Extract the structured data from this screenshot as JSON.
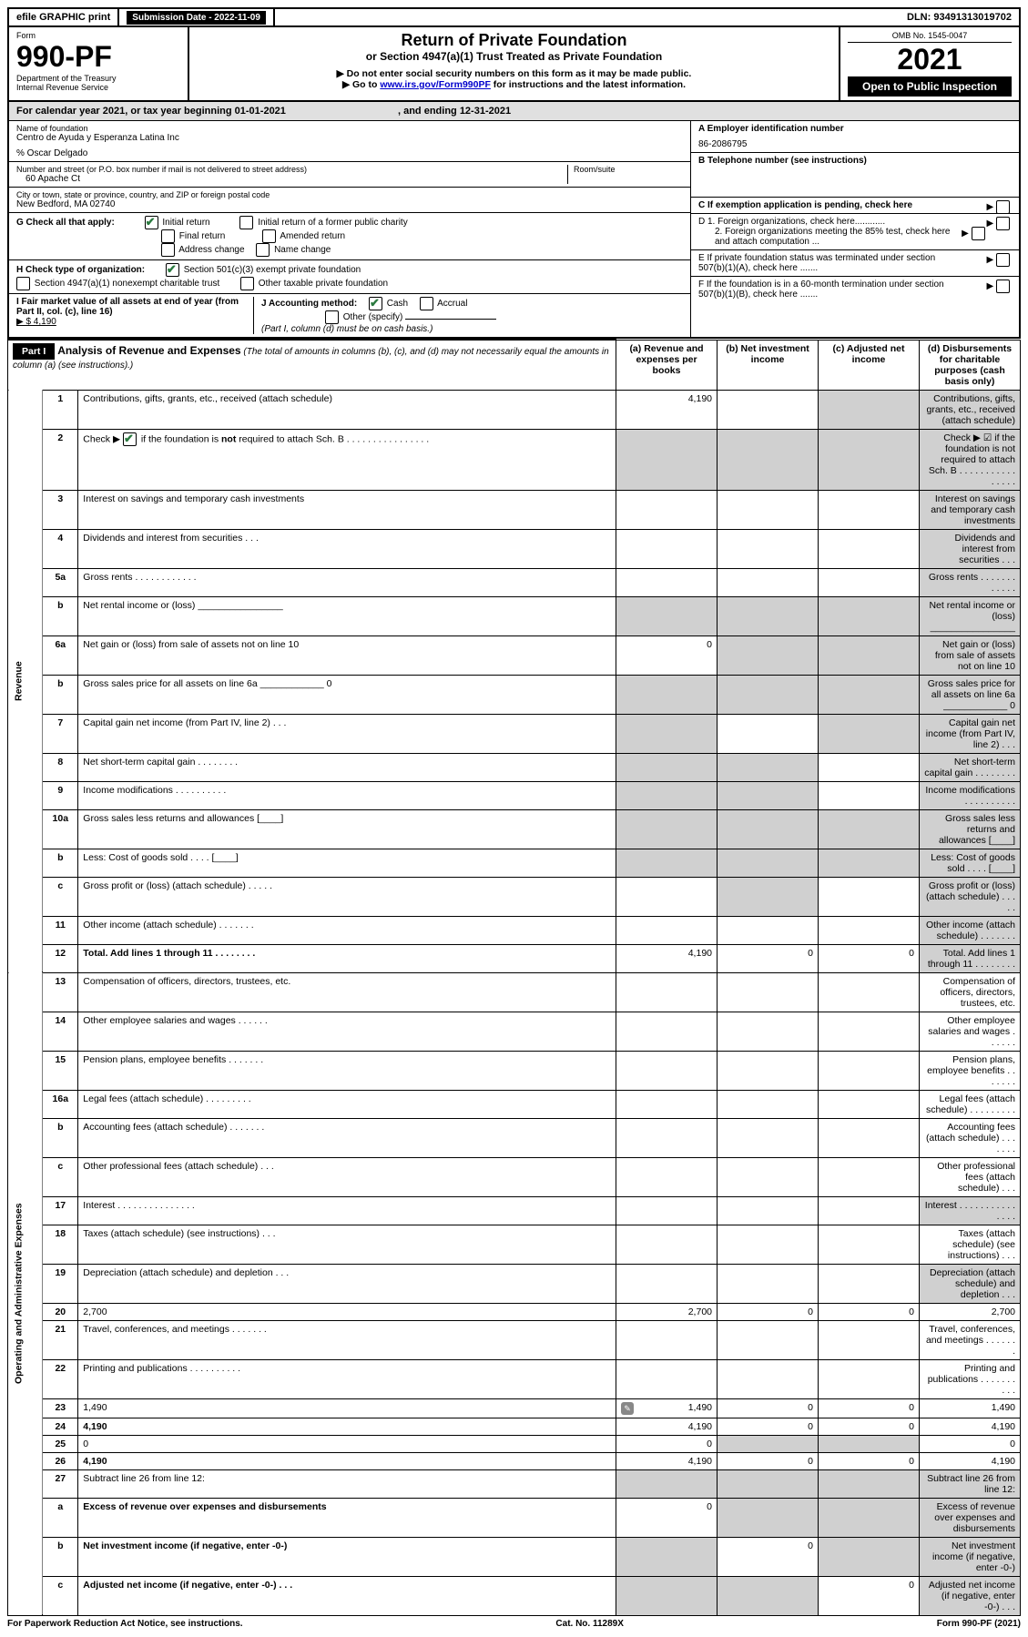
{
  "top": {
    "efile": "efile GRAPHIC print",
    "submission": "Submission Date - 2022-11-09",
    "dln": "DLN: 93491313019702"
  },
  "header": {
    "form_word": "Form",
    "form_num": "990-PF",
    "dept": "Department of the Treasury",
    "irs": "Internal Revenue Service",
    "title": "Return of Private Foundation",
    "subtitle": "or Section 4947(a)(1) Trust Treated as Private Foundation",
    "note1": "▶ Do not enter social security numbers on this form as it may be made public.",
    "note2_pre": "▶ Go to ",
    "note2_link": "www.irs.gov/Form990PF",
    "note2_post": " for instructions and the latest information.",
    "omb": "OMB No. 1545-0047",
    "year": "2021",
    "open": "Open to Public Inspection"
  },
  "calendar": {
    "text": "For calendar year 2021, or tax year beginning 01-01-2021",
    "ending": ", and ending 12-31-2021"
  },
  "entity": {
    "name_label": "Name of foundation",
    "name": "Centro de Ayuda y Esperanza Latina Inc",
    "care_of": "% Oscar Delgado",
    "addr_label": "Number and street (or P.O. box number if mail is not delivered to street address)",
    "addr": "60 Apache Ct",
    "room_label": "Room/suite",
    "city_label": "City or town, state or province, country, and ZIP or foreign postal code",
    "city": "New Bedford, MA  02740",
    "ein_label": "A Employer identification number",
    "ein": "86-2086795",
    "phone_label": "B Telephone number (see instructions)",
    "c_label": "C If exemption application is pending, check here",
    "d1": "D 1. Foreign organizations, check here............",
    "d2": "2. Foreign organizations meeting the 85% test, check here and attach computation ...",
    "e_label": "E  If private foundation status was terminated under section 507(b)(1)(A), check here .......",
    "f_label": "F  If the foundation is in a 60-month termination under section 507(b)(1)(B), check here .......",
    "g_label": "G Check all that apply:",
    "g_opts": [
      "Initial return",
      "Initial return of a former public charity",
      "Final return",
      "Amended return",
      "Address change",
      "Name change"
    ],
    "h_label": "H Check type of organization:",
    "h_opts": [
      "Section 501(c)(3) exempt private foundation",
      "Section 4947(a)(1) nonexempt charitable trust",
      "Other taxable private foundation"
    ],
    "i_label": "I Fair market value of all assets at end of year (from Part II, col. (c), line 16)",
    "i_val": "▶ $  4,190",
    "j_label": "J Accounting method:",
    "j_cash": "Cash",
    "j_accrual": "Accrual",
    "j_other": "Other (specify)",
    "j_note": "(Part I, column (d) must be on cash basis.)"
  },
  "part1": {
    "label": "Part I",
    "title": "Analysis of Revenue and Expenses",
    "title_note": " (The total of amounts in columns (b), (c), and (d) may not necessarily equal the amounts in column (a) (see instructions).)",
    "cols": {
      "a": "(a) Revenue and expenses per books",
      "b": "(b) Net investment income",
      "c": "(c) Adjusted net income",
      "d": "(d) Disbursements for charitable purposes (cash basis only)"
    }
  },
  "sidelabels": {
    "revenue": "Revenue",
    "expenses": "Operating and Administrative Expenses"
  },
  "lines": [
    {
      "n": "1",
      "d": "Contributions, gifts, grants, etc., received (attach schedule)",
      "a": "4,190",
      "shade_b": false,
      "shade_c": true,
      "shade_d": true
    },
    {
      "n": "2",
      "d": "Check ▶ ☑ if the foundation is not required to attach Sch. B    .  .  .  .  .  .  .  .  .  .  .  .  .  .  .  .",
      "shade_a": true,
      "shade_b": true,
      "shade_c": true,
      "shade_d": true,
      "bold_not": true
    },
    {
      "n": "3",
      "d": "Interest on savings and temporary cash investments",
      "shade_d": true
    },
    {
      "n": "4",
      "d": "Dividends and interest from securities    .   .   .",
      "shade_d": true
    },
    {
      "n": "5a",
      "d": "Gross rents    .   .   .   .   .   .   .   .   .   .   .   .",
      "shade_d": true
    },
    {
      "n": "b",
      "d": "Net rental income or (loss) ________________",
      "shade_a": true,
      "shade_b": true,
      "shade_c": true,
      "shade_d": true
    },
    {
      "n": "6a",
      "d": "Net gain or (loss) from sale of assets not on line 10",
      "a": "0",
      "shade_b": true,
      "shade_c": true,
      "shade_d": true
    },
    {
      "n": "b",
      "d": "Gross sales price for all assets on line 6a ____________ 0",
      "shade_a": true,
      "shade_b": true,
      "shade_c": true,
      "shade_d": true
    },
    {
      "n": "7",
      "d": "Capital gain net income (from Part IV, line 2)   .   .   .",
      "shade_a": true,
      "shade_c": true,
      "shade_d": true
    },
    {
      "n": "8",
      "d": "Net short-term capital gain   .   .   .   .   .   .   .   .",
      "shade_a": true,
      "shade_b": true,
      "shade_d": true
    },
    {
      "n": "9",
      "d": "Income modifications   .   .   .   .   .   .   .   .   .   .",
      "shade_a": true,
      "shade_b": true,
      "shade_d": true
    },
    {
      "n": "10a",
      "d": "Gross sales less returns and allowances   [____]",
      "shade_a": true,
      "shade_b": true,
      "shade_c": true,
      "shade_d": true
    },
    {
      "n": "b",
      "d": "Less: Cost of goods sold   .   .   .   .   [____]",
      "shade_a": true,
      "shade_b": true,
      "shade_c": true,
      "shade_d": true
    },
    {
      "n": "c",
      "d": "Gross profit or (loss) (attach schedule)   .   .   .   .   .",
      "shade_b": true,
      "shade_d": true
    },
    {
      "n": "11",
      "d": "Other income (attach schedule)   .   .   .   .   .   .   .",
      "shade_d": true
    },
    {
      "n": "12",
      "d": "Total. Add lines 1 through 11   .   .   .   .   .   .   .   .",
      "a": "4,190",
      "b": "0",
      "c": "0",
      "shade_d": true,
      "bold": true
    },
    {
      "n": "13",
      "d": "Compensation of officers, directors, trustees, etc."
    },
    {
      "n": "14",
      "d": "Other employee salaries and wages   .   .   .   .   .   ."
    },
    {
      "n": "15",
      "d": "Pension plans, employee benefits   .   .   .   .   .   .   ."
    },
    {
      "n": "16a",
      "d": "Legal fees (attach schedule)  .   .   .   .   .   .   .   .   ."
    },
    {
      "n": "b",
      "d": "Accounting fees (attach schedule)  .   .   .   .   .   .   ."
    },
    {
      "n": "c",
      "d": "Other professional fees (attach schedule)   .   .   ."
    },
    {
      "n": "17",
      "d": "Interest   .   .   .   .   .   .   .   .   .   .   .   .   .   .   .",
      "shade_d": true
    },
    {
      "n": "18",
      "d": "Taxes (attach schedule) (see instructions)   .   .   ."
    },
    {
      "n": "19",
      "d": "Depreciation (attach schedule) and depletion   .   .   .",
      "shade_d": true
    },
    {
      "n": "20",
      "d": "2,700",
      "a": "2,700",
      "b": "0",
      "c": "0"
    },
    {
      "n": "21",
      "d": "Travel, conferences, and meetings  .   .   .   .   .   .   ."
    },
    {
      "n": "22",
      "d": "Printing and publications  .   .   .   .   .   .   .   .   .   ."
    },
    {
      "n": "23",
      "d": "1,490",
      "a": "1,490",
      "b": "0",
      "c": "0",
      "icon": true
    },
    {
      "n": "24",
      "d": "4,190",
      "a": "4,190",
      "b": "0",
      "c": "0",
      "bold": true
    },
    {
      "n": "25",
      "d": "0",
      "a": "0",
      "shade_b": true,
      "shade_c": true
    },
    {
      "n": "26",
      "d": "4,190",
      "a": "4,190",
      "b": "0",
      "c": "0",
      "bold": true
    },
    {
      "n": "27",
      "d": "Subtract line 26 from line 12:",
      "shade_a": true,
      "shade_b": true,
      "shade_c": true,
      "shade_d": true
    },
    {
      "n": "a",
      "d": "Excess of revenue over expenses and disbursements",
      "a": "0",
      "shade_b": true,
      "shade_c": true,
      "shade_d": true,
      "bold": true
    },
    {
      "n": "b",
      "d": "Net investment income (if negative, enter -0-)",
      "shade_a": true,
      "b": "0",
      "shade_c": true,
      "shade_d": true,
      "bold": true
    },
    {
      "n": "c",
      "d": "Adjusted net income (if negative, enter -0-)   .   .   .",
      "shade_a": true,
      "shade_b": true,
      "c": "0",
      "shade_d": true,
      "bold": true
    }
  ],
  "footer": {
    "left": "For Paperwork Reduction Act Notice, see instructions.",
    "center": "Cat. No. 11289X",
    "right": "Form 990-PF (2021)"
  }
}
